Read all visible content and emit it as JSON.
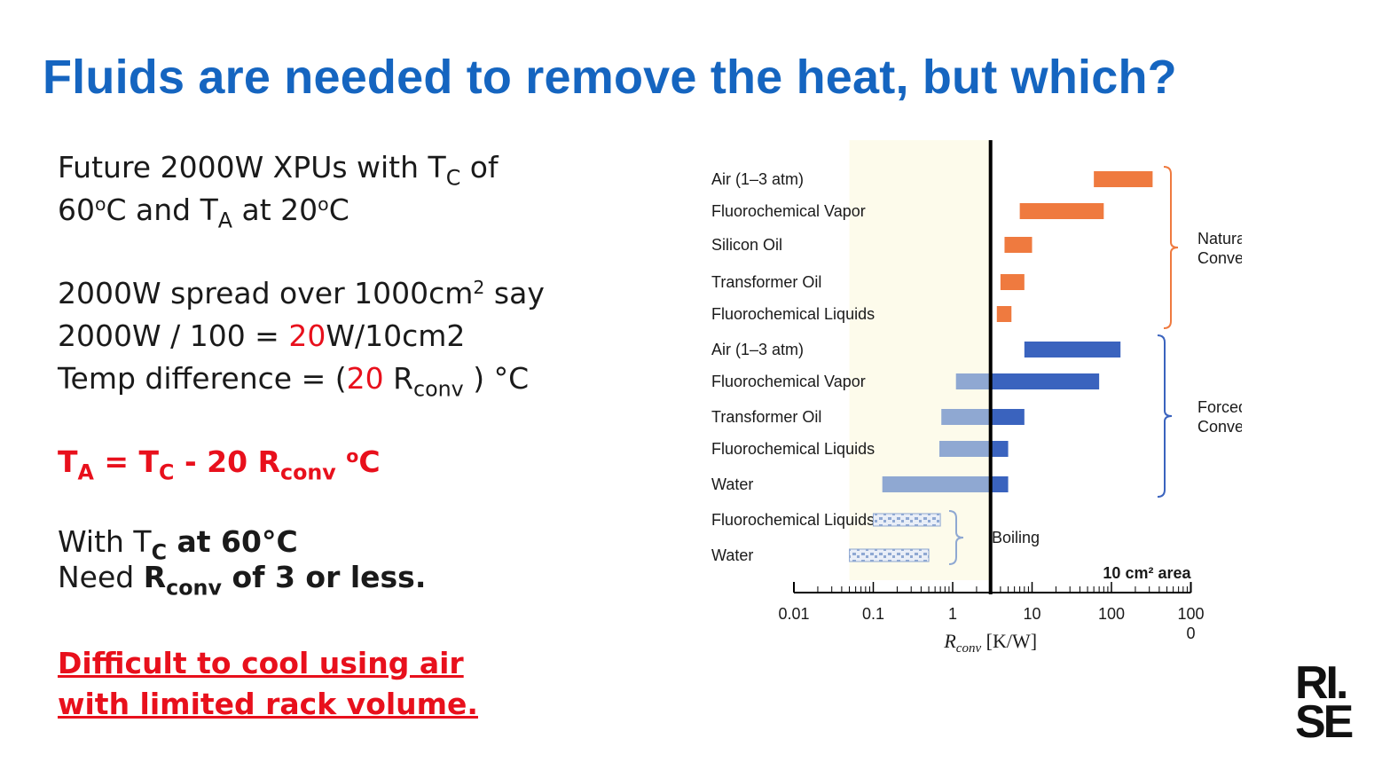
{
  "title": "Fluids are needed to remove the heat, but which?",
  "left": {
    "p1": {
      "a": "Future 2000W XPUs with T",
      "a_sub": "C",
      "a_end": " of",
      "b": "60",
      "b_sup": "o",
      "b_mid": "C and T",
      "b_sub": "A",
      "b_mid2": " at 20",
      "b_sup2": "o",
      "b_end": "C"
    },
    "p2": {
      "l1": "2000W spread over 1000cm",
      "l1_sup": "2",
      "l1_end": " say",
      "l2_a": "2000W / 100 = ",
      "l2_red": "20",
      "l2_b": "W/10cm2",
      "l3_a": "Temp difference = (",
      "l3_red": "20",
      "l3_b": " R",
      "l3_sub": "conv",
      "l3_c": " ) °C"
    },
    "formula": {
      "a": "T",
      "a_sub": "A",
      "b": " = T",
      "b_sub": "C",
      "c": " - 20 R",
      "c_sub": "conv",
      "d": " ",
      "d_sup": "o",
      "e": "C"
    },
    "p4": {
      "l1_a": "With T",
      "l1_sub": "C",
      "l1_b": " at 60°C",
      "l2_a": "Need ",
      "l2_b": "R",
      "l2_sub": "conv",
      "l2_c": " of 3 or less."
    },
    "difficult": {
      "l1": "Difficult to cool using air",
      "l2": "with limited rack volume."
    }
  },
  "logo": {
    "l1": "RI.",
    "l2": "SE"
  },
  "colors": {
    "title": "#1565c0",
    "red": "#e8101c",
    "natural": "#ef7a3f",
    "forced": "#3a63be",
    "forced_light": "#8fa8d2",
    "highlight": "#fdfbeb"
  },
  "chart_data": {
    "type": "bar",
    "orientation": "horizontal",
    "x_scale": "log",
    "xlabel": "R",
    "xlabel_sub": "conv",
    "xlabel_unit": " [K/W]",
    "xlim": [
      0.01,
      1000
    ],
    "xticks": [
      "0.01",
      "0.1",
      "1",
      "10",
      "100",
      "100"
    ],
    "xtick_extra": "0",
    "area_note": "10 cm² area",
    "vertical_line_x": 3,
    "highlight_range": [
      0.05,
      3
    ],
    "categories": [
      "Air (1–3 atm)",
      "Fluorochemical Vapor",
      "Silicon Oil",
      "Transformer Oil",
      "Fluorochemical Liquids",
      "Air (1–3 atm)",
      "Fluorochemical Vapor",
      "Transformer Oil",
      "Fluorochemical Liquids",
      "Water",
      "Fluorochemical Liquids",
      "Water"
    ],
    "series": [
      {
        "name": "Natural Convection",
        "group": "natural",
        "ranges": [
          [
            60,
            330
          ],
          [
            7,
            80
          ],
          [
            4.5,
            10
          ],
          [
            4,
            8
          ],
          [
            3.6,
            5.5
          ]
        ]
      },
      {
        "name": "Forced Convection",
        "group": "forced",
        "ranges": [
          [
            8,
            130
          ],
          [
            1.1,
            70
          ],
          [
            0.72,
            8
          ],
          [
            0.68,
            5
          ],
          [
            0.13,
            5
          ]
        ]
      },
      {
        "name": "Boiling",
        "group": "boiling",
        "ranges": [
          [
            0.1,
            0.7
          ],
          [
            0.05,
            0.5
          ]
        ]
      }
    ],
    "group_labels": {
      "natural": [
        "Natural",
        "Convection"
      ],
      "forced": [
        "Forced",
        "Convection"
      ],
      "boiling": [
        "Boiling"
      ]
    }
  }
}
